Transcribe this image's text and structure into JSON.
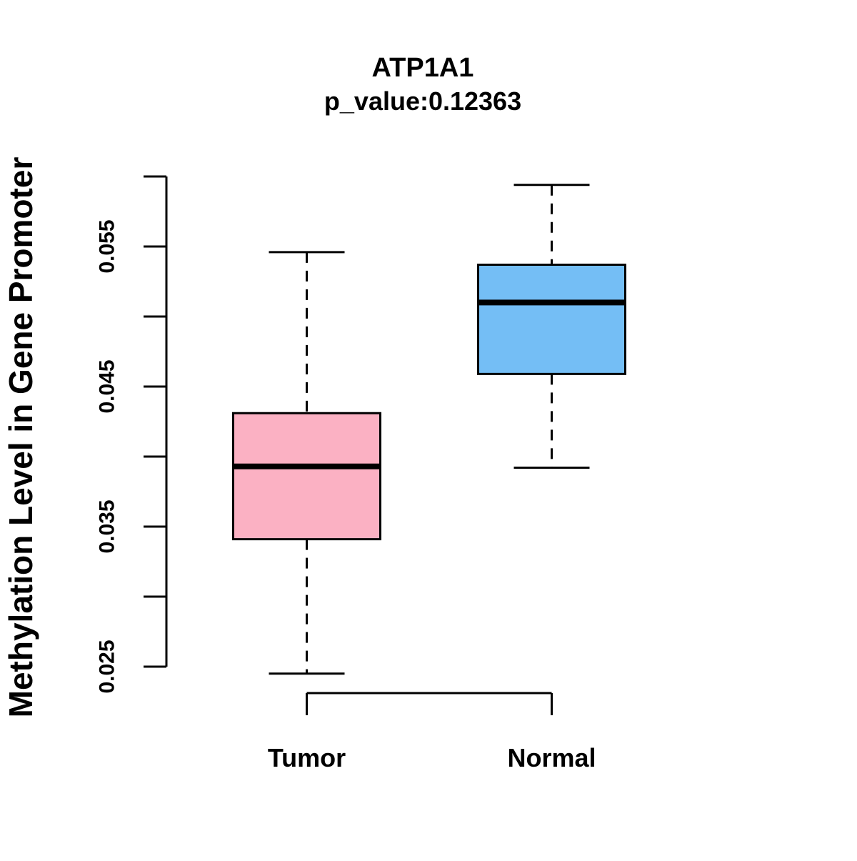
{
  "figure": {
    "title": "ATP1A1",
    "subtitle": "p_value:0.12363",
    "ylabel": "Methylation Level in Gene Promoter"
  },
  "chart_data": {
    "type": "boxplot",
    "title": "ATP1A1",
    "subtitle": "p_value:0.12363",
    "xlabel": "",
    "ylabel": "Methylation Level in Gene Promoter",
    "categories": [
      "Tumor",
      "Normal"
    ],
    "series": [
      {
        "name": "Tumor",
        "box_color": "#FBB1C3",
        "whisker_low": 0.0245,
        "q1": 0.0341,
        "median": 0.0393,
        "q3": 0.0431,
        "whisker_high": 0.0546
      },
      {
        "name": "Normal",
        "box_color": "#74BEF5",
        "whisker_low": 0.0392,
        "q1": 0.0459,
        "median": 0.051,
        "q3": 0.0537,
        "whisker_high": 0.0594
      }
    ],
    "y_axis": {
      "min": 0.025,
      "max": 0.06,
      "tick_step": 0.005,
      "labeled_ticks": [
        0.025,
        0.035,
        0.045,
        0.055
      ],
      "tick_labels": [
        "0.025",
        "0.035",
        "0.045",
        "0.055"
      ]
    },
    "style": {
      "line_color": "#000000",
      "whisker_linestyle": "dashed",
      "grid": false,
      "legend": false
    }
  }
}
